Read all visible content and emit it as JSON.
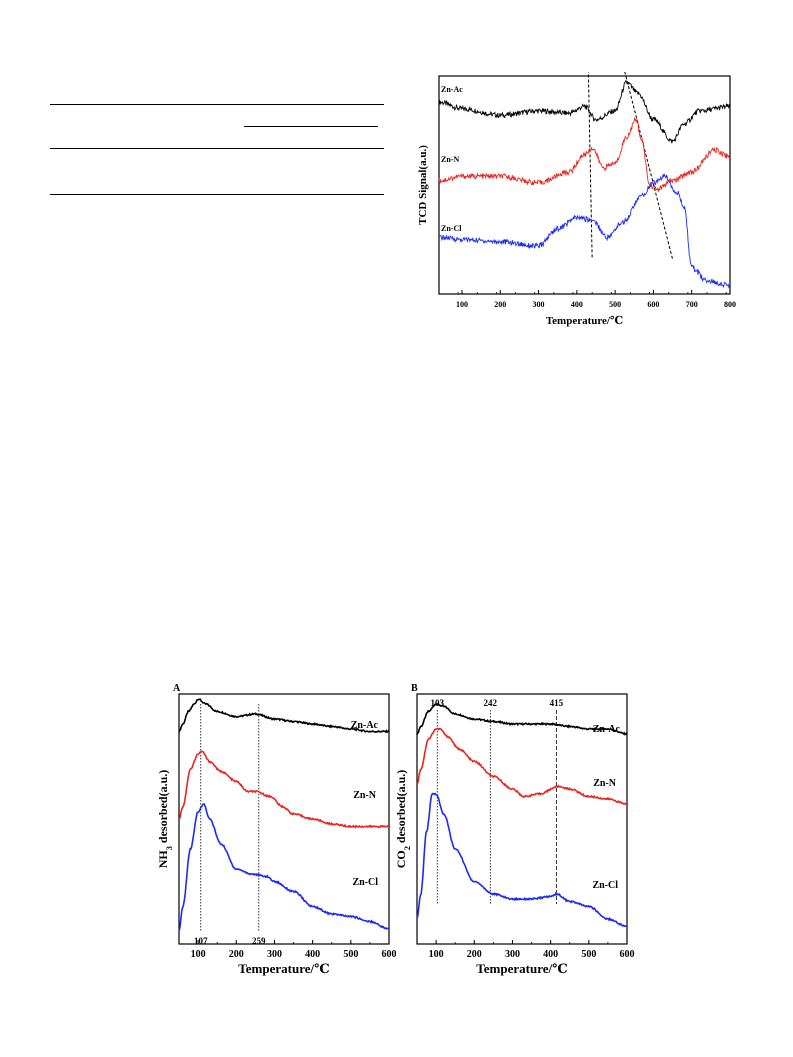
{
  "chart_data": [
    {
      "id": "tpr",
      "type": "line",
      "xlabel": "Temperature/℃",
      "ylabel": "TCD Signal(a.u.)",
      "xlim": [
        40,
        800
      ],
      "xticks": [
        "100",
        "200",
        "300",
        "400",
        "500",
        "600",
        "700",
        "800"
      ],
      "xtick_values": [
        100,
        200,
        300,
        400,
        500,
        600,
        700,
        800
      ],
      "y_ticks_shown": false,
      "grid": false,
      "series": [
        {
          "name": "Zn-Ac",
          "color": "#000000",
          "x": [
            40,
            100,
            200,
            300,
            380,
            420,
            450,
            500,
            530,
            560,
            600,
            650,
            680,
            720,
            800
          ],
          "y": [
            0.88,
            0.85,
            0.82,
            0.84,
            0.83,
            0.86,
            0.8,
            0.84,
            0.97,
            0.92,
            0.8,
            0.7,
            0.78,
            0.84,
            0.86
          ]
        },
        {
          "name": "Zn-N",
          "color": "#e8251f",
          "x": [
            40,
            100,
            200,
            300,
            380,
            420,
            440,
            470,
            500,
            530,
            555,
            570,
            590,
            610,
            650,
            700,
            760,
            800
          ],
          "y": [
            0.52,
            0.54,
            0.54,
            0.51,
            0.56,
            0.64,
            0.67,
            0.58,
            0.6,
            0.72,
            0.8,
            0.7,
            0.5,
            0.48,
            0.52,
            0.56,
            0.66,
            0.63
          ]
        },
        {
          "name": "Zn-Cl",
          "color": "#1c2bf2",
          "x": [
            40,
            100,
            200,
            300,
            350,
            400,
            440,
            480,
            520,
            570,
            600,
            630,
            660,
            680,
            700,
            740,
            800
          ],
          "y": [
            0.26,
            0.25,
            0.24,
            0.22,
            0.3,
            0.35,
            0.34,
            0.26,
            0.33,
            0.45,
            0.51,
            0.54,
            0.47,
            0.4,
            0.12,
            0.06,
            0.04
          ]
        }
      ],
      "annotations": [
        {
          "kind": "dashed-line",
          "x": [
            430,
            440
          ],
          "y": [
            1.03,
            0.16
          ]
        },
        {
          "kind": "dashed-line",
          "x": [
            525,
            650
          ],
          "y": [
            1.02,
            0.16
          ]
        }
      ],
      "label_text": [
        "Zn-Ac",
        "Zn-N",
        "Zn-Cl"
      ]
    },
    {
      "id": "nh3",
      "type": "line",
      "panel_letter": "A",
      "xlabel": "Temperature/℃",
      "ylabel_main": "NH",
      "ylabel_sub": "3",
      "ylabel_rest": " desorbed(a.u.)",
      "xlim": [
        50,
        600
      ],
      "xticks": [
        "100",
        "200",
        "300",
        "400",
        "500",
        "600"
      ],
      "xtick_values": [
        100,
        200,
        300,
        400,
        500,
        600
      ],
      "grid": false,
      "series": [
        {
          "name": "Zn-Ac",
          "color": "#000000",
          "x": [
            50,
            60,
            75,
            90,
            100,
            120,
            150,
            200,
            250,
            300,
            350,
            400,
            450,
            500,
            550,
            600
          ],
          "y": [
            0.85,
            0.88,
            0.93,
            0.96,
            0.98,
            0.96,
            0.93,
            0.91,
            0.92,
            0.9,
            0.89,
            0.88,
            0.87,
            0.86,
            0.85,
            0.85
          ]
        },
        {
          "name": "Zn-N",
          "color": "#e8251f",
          "x": [
            50,
            60,
            80,
            100,
            110,
            130,
            160,
            200,
            230,
            250,
            290,
            320,
            350,
            400,
            450,
            500,
            550,
            600
          ],
          "y": [
            0.5,
            0.55,
            0.7,
            0.76,
            0.77,
            0.73,
            0.69,
            0.65,
            0.61,
            0.61,
            0.59,
            0.55,
            0.52,
            0.5,
            0.48,
            0.47,
            0.47,
            0.47
          ]
        },
        {
          "name": "Zn-Cl",
          "color": "#1c2bf2",
          "x": [
            50,
            60,
            80,
            100,
            115,
            130,
            160,
            200,
            240,
            280,
            300,
            350,
            400,
            450,
            500,
            550,
            600
          ],
          "y": [
            0.05,
            0.15,
            0.38,
            0.53,
            0.56,
            0.5,
            0.4,
            0.3,
            0.28,
            0.27,
            0.25,
            0.21,
            0.15,
            0.12,
            0.11,
            0.09,
            0.06
          ]
        }
      ],
      "annotations": [
        {
          "kind": "dotted-line",
          "x": 107,
          "label": "107"
        },
        {
          "kind": "dotted-line",
          "x": 259,
          "label": "259"
        }
      ],
      "label_text": [
        "Zn-Ac",
        "Zn-N",
        "Zn-Cl"
      ]
    },
    {
      "id": "co2",
      "type": "line",
      "panel_letter": "B",
      "xlabel": "Temperature/℃",
      "ylabel_main": "CO",
      "ylabel_sub": "2",
      "ylabel_rest": " desorbed(a.u.)",
      "xlim": [
        50,
        600
      ],
      "xticks": [
        "100",
        "200",
        "300",
        "400",
        "500",
        "600"
      ],
      "xtick_values": [
        100,
        200,
        300,
        400,
        500,
        600
      ],
      "grid": false,
      "series": [
        {
          "name": "Zn-Ac",
          "color": "#000000",
          "x": [
            50,
            60,
            80,
            100,
            120,
            150,
            200,
            250,
            300,
            350,
            400,
            450,
            500,
            550,
            600
          ],
          "y": [
            0.84,
            0.87,
            0.93,
            0.96,
            0.95,
            0.92,
            0.9,
            0.89,
            0.88,
            0.88,
            0.88,
            0.87,
            0.86,
            0.86,
            0.84
          ]
        },
        {
          "name": "Zn-N",
          "color": "#e8251f",
          "x": [
            50,
            60,
            80,
            100,
            110,
            130,
            160,
            200,
            250,
            300,
            330,
            370,
            420,
            450,
            500,
            550,
            600
          ],
          "y": [
            0.64,
            0.7,
            0.82,
            0.86,
            0.86,
            0.83,
            0.78,
            0.73,
            0.67,
            0.62,
            0.59,
            0.6,
            0.63,
            0.62,
            0.59,
            0.58,
            0.56
          ]
        },
        {
          "name": "Zn-Cl",
          "color": "#1c2bf2",
          "x": [
            50,
            60,
            75,
            90,
            100,
            120,
            150,
            200,
            250,
            300,
            350,
            400,
            415,
            450,
            500,
            550,
            600
          ],
          "y": [
            0.1,
            0.2,
            0.45,
            0.6,
            0.6,
            0.52,
            0.38,
            0.25,
            0.2,
            0.18,
            0.18,
            0.19,
            0.2,
            0.17,
            0.15,
            0.1,
            0.07
          ]
        }
      ],
      "annotations": [
        {
          "kind": "dotted-line",
          "x": 103,
          "label": "103"
        },
        {
          "kind": "dotted-line",
          "x": 242,
          "label": "242"
        },
        {
          "kind": "dashed-line",
          "x": 415,
          "label": "415"
        }
      ],
      "label_text": [
        "Zn-Ac",
        "Zn-N",
        "Zn-Cl"
      ]
    }
  ]
}
